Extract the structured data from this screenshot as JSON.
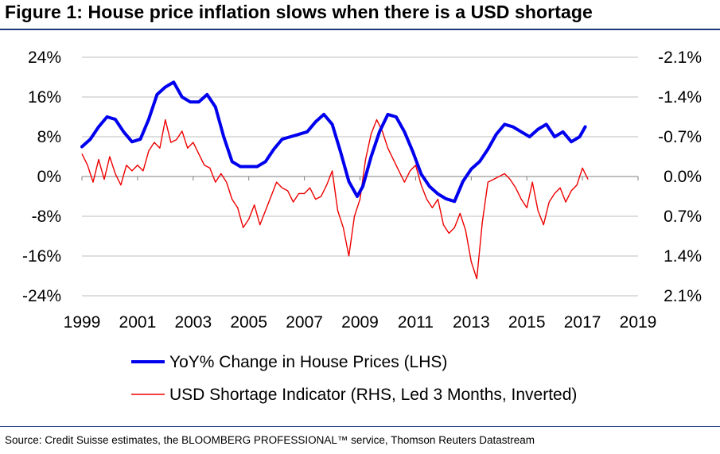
{
  "title": "Figure 1: House price inflation slows when there is a USD shortage",
  "source": "Source: Credit Suisse estimates, the BLOOMBERG PROFESSIONAL™ service, Thomson Reuters Datastream",
  "colors": {
    "accent": "#1f3a7a",
    "series_lhs": "#0000ee",
    "series_rhs": "#ee0000",
    "grid": "#bfbfbf"
  },
  "chart_data": {
    "type": "line",
    "title": "House price inflation slows when there is a USD shortage",
    "xlabel": "",
    "ylabel_left": "",
    "ylabel_right": "",
    "xlim": [
      1999,
      2019
    ],
    "x_tick_labels": [
      "1999",
      "2001",
      "2003",
      "2005",
      "2007",
      "2009",
      "2011",
      "2013",
      "2015",
      "2017",
      "2019"
    ],
    "x_ticks": [
      1999,
      2001,
      2003,
      2005,
      2007,
      2009,
      2011,
      2013,
      2015,
      2017,
      2019
    ],
    "ylim_left": [
      -24,
      24
    ],
    "y_left_ticks": [
      24,
      16,
      8,
      0,
      -8,
      -16,
      -24
    ],
    "y_left_tick_labels": [
      "24%",
      "16%",
      "8%",
      "0%",
      "-8%",
      "-16%",
      "-24%"
    ],
    "ylim_right": [
      -2.1,
      2.1
    ],
    "y_right_tick_labels": [
      "-2.1%",
      "-1.4%",
      "-0.7%",
      "0.0%",
      "0.7%",
      "1.4%",
      "2.1%"
    ],
    "grid": true,
    "legend_position": "bottom",
    "series": [
      {
        "name": "YoY% Change in House Prices (LHS)",
        "axis": "left",
        "color": "#0000ee",
        "x": [
          1999.0,
          1999.3,
          1999.6,
          1999.9,
          2000.2,
          2000.5,
          2000.8,
          2001.1,
          2001.4,
          2001.7,
          2002.0,
          2002.3,
          2002.6,
          2002.9,
          2003.2,
          2003.5,
          2003.8,
          2004.1,
          2004.4,
          2004.7,
          2005.0,
          2005.3,
          2005.6,
          2005.9,
          2006.2,
          2006.5,
          2006.8,
          2007.1,
          2007.4,
          2007.7,
          2008.0,
          2008.3,
          2008.6,
          2008.9,
          2009.1,
          2009.4,
          2009.7,
          2010.0,
          2010.3,
          2010.6,
          2010.9,
          2011.2,
          2011.5,
          2011.8,
          2012.1,
          2012.4,
          2012.7,
          2013.0,
          2013.3,
          2013.6,
          2013.9,
          2014.2,
          2014.5,
          2014.8,
          2015.1,
          2015.4,
          2015.7,
          2016.0,
          2016.3,
          2016.6,
          2016.9,
          2017.1
        ],
        "values": [
          6.0,
          7.5,
          10.0,
          12.0,
          11.5,
          9.0,
          7.0,
          7.5,
          11.5,
          16.5,
          18.0,
          19.0,
          16.0,
          15.0,
          15.0,
          16.5,
          14.0,
          8.0,
          3.0,
          2.0,
          2.0,
          2.0,
          3.0,
          5.5,
          7.5,
          8.0,
          8.5,
          9.0,
          11.0,
          12.5,
          10.5,
          5.0,
          -1.0,
          -4.0,
          -2.0,
          4.0,
          9.0,
          12.5,
          12.0,
          9.0,
          5.0,
          0.5,
          -2.0,
          -3.5,
          -4.5,
          -5.0,
          -1.0,
          1.5,
          3.0,
          5.5,
          8.5,
          10.5,
          10.0,
          9.0,
          8.0,
          9.5,
          10.5,
          8.0,
          9.0,
          7.0,
          8.0,
          10.0
        ]
      },
      {
        "name": "USD Shortage Indicator (RHS, Led 3 Months, Inverted)",
        "axis": "right",
        "color": "#ee0000",
        "x": [
          1999.0,
          1999.2,
          1999.4,
          1999.6,
          1999.8,
          2000.0,
          2000.2,
          2000.4,
          2000.6,
          2000.8,
          2001.0,
          2001.2,
          2001.4,
          2001.6,
          2001.8,
          2002.0,
          2002.2,
          2002.4,
          2002.6,
          2002.8,
          2003.0,
          2003.2,
          2003.4,
          2003.6,
          2003.8,
          2004.0,
          2004.2,
          2004.4,
          2004.6,
          2004.8,
          2005.0,
          2005.2,
          2005.4,
          2005.6,
          2005.8,
          2006.0,
          2006.2,
          2006.4,
          2006.6,
          2006.8,
          2007.0,
          2007.2,
          2007.4,
          2007.6,
          2007.8,
          2008.0,
          2008.2,
          2008.4,
          2008.6,
          2008.8,
          2009.0,
          2009.2,
          2009.4,
          2009.6,
          2009.8,
          2010.0,
          2010.2,
          2010.4,
          2010.6,
          2010.8,
          2011.0,
          2011.2,
          2011.4,
          2011.6,
          2011.8,
          2012.0,
          2012.2,
          2012.4,
          2012.6,
          2012.8,
          2013.0,
          2013.2,
          2013.4,
          2013.6,
          2013.8,
          2014.0,
          2014.2,
          2014.4,
          2014.6,
          2014.8,
          2015.0,
          2015.2,
          2015.4,
          2015.6,
          2015.8,
          2016.0,
          2016.2,
          2016.4,
          2016.6,
          2016.8,
          2017.0,
          2017.2
        ],
        "values": [
          -0.4,
          -0.2,
          0.1,
          -0.3,
          0.05,
          -0.35,
          -0.05,
          0.15,
          -0.2,
          -0.1,
          -0.2,
          -0.1,
          -0.45,
          -0.6,
          -0.5,
          -1.0,
          -0.6,
          -0.65,
          -0.8,
          -0.5,
          -0.6,
          -0.4,
          -0.2,
          -0.15,
          0.1,
          -0.05,
          0.1,
          0.4,
          0.55,
          0.9,
          0.75,
          0.5,
          0.85,
          0.6,
          0.35,
          0.1,
          0.2,
          0.25,
          0.45,
          0.3,
          0.3,
          0.2,
          0.4,
          0.35,
          0.15,
          -0.1,
          0.6,
          0.9,
          1.4,
          0.7,
          0.4,
          -0.3,
          -0.75,
          -1.0,
          -0.8,
          -0.5,
          -0.3,
          -0.1,
          0.1,
          -0.1,
          -0.2,
          0.15,
          0.4,
          0.55,
          0.4,
          0.85,
          1.0,
          0.9,
          0.65,
          0.95,
          1.5,
          1.8,
          0.8,
          0.1,
          0.05,
          0.0,
          -0.05,
          0.05,
          0.2,
          0.4,
          0.55,
          0.1,
          0.6,
          0.85,
          0.45,
          0.3,
          0.2,
          0.45,
          0.25,
          0.15,
          -0.15,
          0.05
        ]
      }
    ]
  }
}
